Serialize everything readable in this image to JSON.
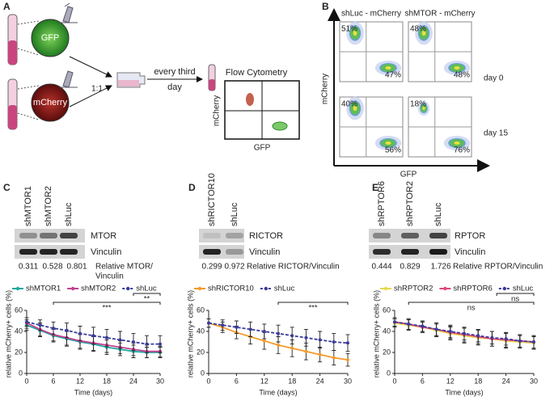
{
  "panel_a": {
    "label": "A",
    "circles": [
      "GFP",
      "mCherry"
    ],
    "ratio": "1:1",
    "step": [
      "every third",
      "day"
    ],
    "assay": "Flow Cytometry",
    "y_axis": "mCherry",
    "x_axis": "GFP"
  },
  "panel_b": {
    "label": "B",
    "columns": [
      "shLuc - mCherry",
      "shMTOR - mCherry"
    ],
    "rows": [
      "day 0",
      "day 15"
    ],
    "plots": [
      [
        {
          "upper_left": "51%",
          "lower_right": "47%"
        },
        {
          "upper_left": "48%",
          "lower_right": "48%"
        }
      ],
      [
        {
          "upper_left": "40%",
          "lower_right": "56%"
        },
        {
          "upper_left": "18%",
          "lower_right": "76%"
        }
      ]
    ],
    "y_axis": "mCherry",
    "x_axis": "GFP"
  },
  "blots": [
    {
      "label": "C",
      "lanes": [
        "shMTOR1",
        "shMTOR2",
        "shLuc"
      ],
      "bands": [
        "MTOR",
        "Vinculin"
      ],
      "ratios": [
        "0.311",
        "0.528",
        "0.801"
      ],
      "ratio_label": [
        "Relative MTOR/",
        "Vinculin"
      ]
    },
    {
      "label": "D",
      "lanes": [
        "shRICTOR10",
        "shLuc"
      ],
      "bands": [
        "RICTOR",
        "Vinculin"
      ],
      "ratios": [
        "0.299",
        "0.972"
      ],
      "ratio_label": [
        "Relative RICTOR/Vinculin"
      ]
    },
    {
      "label": "E",
      "lanes": [
        "shRPTOR6",
        "shRPTOR2",
        "shLuc"
      ],
      "bands": [
        "RPTOR",
        "Vinculin"
      ],
      "ratios": [
        "0.444",
        "0.829",
        "1.726"
      ],
      "ratio_label": [
        "Relative RPTOR/Vinculin"
      ]
    }
  ],
  "chart_data": [
    {
      "type": "line",
      "x": [
        0,
        3,
        6,
        9,
        12,
        15,
        18,
        21,
        24,
        27,
        30
      ],
      "xlim": [
        0,
        30
      ],
      "xticks": [
        0,
        6,
        12,
        18,
        24,
        30
      ],
      "ylim": [
        0,
        60
      ],
      "yticks": [
        0,
        20,
        40,
        60
      ],
      "xlabel": "Time (days)",
      "ylabel": "relative mCherry+ cells (%)",
      "series": [
        {
          "name": "shMTOR1",
          "color": "#1fa8a0",
          "linestyle": "solid",
          "values": [
            46,
            41,
            36,
            33,
            30,
            28,
            25,
            23,
            21,
            20,
            20
          ],
          "errors": [
            5,
            6,
            6,
            7,
            7,
            7,
            7,
            6,
            6,
            5,
            5
          ]
        },
        {
          "name": "shMTOR2",
          "color": "#c2418f",
          "linestyle": "solid",
          "values": [
            48,
            42,
            37,
            34,
            31,
            29,
            27,
            25,
            23,
            21,
            21
          ],
          "errors": [
            5,
            6,
            6,
            7,
            7,
            7,
            7,
            6,
            6,
            6,
            5
          ]
        },
        {
          "name": "shLuc",
          "color": "#3b3b9a",
          "linestyle": "dashed",
          "values": [
            49,
            46,
            43,
            41,
            38,
            36,
            34,
            32,
            30,
            28,
            28
          ],
          "errors": [
            4,
            5,
            6,
            7,
            7,
            8,
            8,
            8,
            8,
            8,
            8
          ]
        }
      ],
      "annotations": [
        {
          "text": "***",
          "x_start": 6,
          "x_end": 30
        },
        {
          "text": "**",
          "x_start": 24,
          "x_end": 30
        }
      ]
    },
    {
      "type": "line",
      "x": [
        0,
        3,
        6,
        9,
        12,
        15,
        18,
        21,
        24,
        27,
        30
      ],
      "xlim": [
        0,
        30
      ],
      "xticks": [
        0,
        6,
        12,
        18,
        24,
        30
      ],
      "ylim": [
        0,
        60
      ],
      "yticks": [
        0,
        20,
        40,
        60
      ],
      "xlabel": "Time (days)",
      "ylabel": "relative mCherry+ cells (%)",
      "series": [
        {
          "name": "shRICTOR10",
          "color": "#f29a2e",
          "linestyle": "solid",
          "values": [
            48,
            44,
            39,
            35,
            31,
            27,
            24,
            21,
            18,
            15,
            13
          ],
          "errors": [
            4,
            5,
            6,
            7,
            8,
            8,
            8,
            8,
            7,
            7,
            6
          ]
        },
        {
          "name": "shLuc",
          "color": "#3b3b9a",
          "linestyle": "dashed",
          "values": [
            48,
            46,
            44,
            42,
            40,
            38,
            36,
            34,
            32,
            30,
            29
          ],
          "errors": [
            4,
            5,
            6,
            7,
            7,
            8,
            8,
            8,
            8,
            8,
            8
          ]
        }
      ],
      "annotations": [
        {
          "text": "***",
          "x_start": 15,
          "x_end": 30
        }
      ]
    },
    {
      "type": "line",
      "x": [
        0,
        3,
        6,
        9,
        12,
        15,
        18,
        21,
        24,
        27,
        30
      ],
      "xlim": [
        0,
        30
      ],
      "xticks": [
        0,
        6,
        12,
        18,
        24,
        30
      ],
      "ylim": [
        0,
        60
      ],
      "yticks": [
        0,
        20,
        40,
        60
      ],
      "xlabel": "Time (days)",
      "ylabel": "relative mCherry+ cells (%)",
      "series": [
        {
          "name": "shRPTOR2",
          "color": "#e6d84c",
          "linestyle": "solid",
          "values": [
            48,
            46,
            44,
            41,
            38,
            36,
            34,
            33,
            31,
            30,
            29
          ],
          "errors": [
            4,
            5,
            5,
            6,
            6,
            7,
            7,
            7,
            7,
            6,
            6
          ]
        },
        {
          "name": "shRPTOR6",
          "color": "#e0457b",
          "linestyle": "solid",
          "values": [
            49,
            47,
            44,
            42,
            39,
            37,
            35,
            33,
            32,
            31,
            30
          ],
          "errors": [
            4,
            5,
            5,
            6,
            6,
            7,
            7,
            7,
            7,
            6,
            6
          ]
        },
        {
          "name": "shLuc",
          "color": "#3b3b9a",
          "linestyle": "dashed",
          "values": [
            49,
            47,
            45,
            42,
            40,
            38,
            36,
            34,
            33,
            31,
            30
          ],
          "errors": [
            4,
            5,
            5,
            6,
            6,
            6,
            6,
            6,
            6,
            6,
            6
          ]
        }
      ],
      "annotations": [
        {
          "text": "ns",
          "x_start": 3,
          "x_end": 30
        },
        {
          "text": "ns",
          "x_start": 22,
          "x_end": 30
        }
      ]
    }
  ]
}
